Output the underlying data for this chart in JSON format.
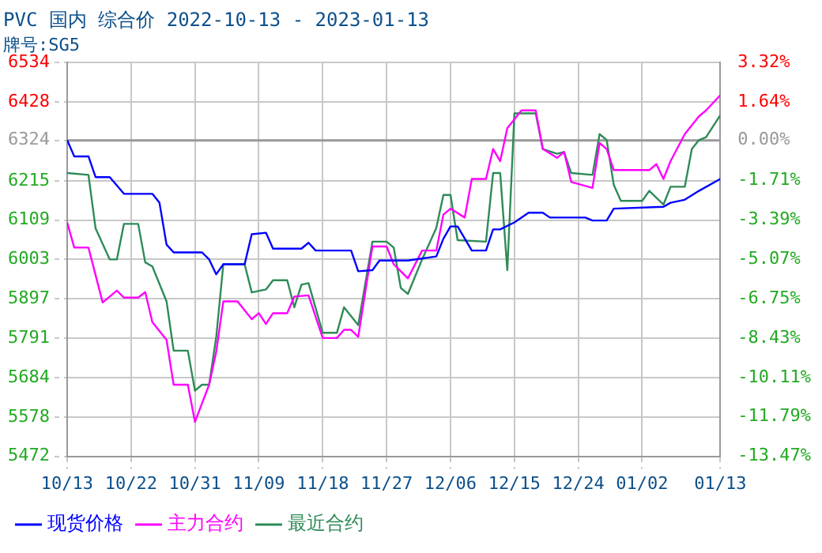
{
  "chart_data": {
    "type": "line",
    "title": "PVC 国内 综合价 2022-10-13 - 2023-01-13",
    "subtitle": "牌号:SG5",
    "xlim": [
      "2022-10-13",
      "2023-01-13"
    ],
    "xticks": [
      {
        "value": "2022-10-13",
        "label": "10/13"
      },
      {
        "value": "2022-10-22",
        "label": "10/22"
      },
      {
        "value": "2022-10-31",
        "label": "10/31"
      },
      {
        "value": "2022-11-09",
        "label": "11/09"
      },
      {
        "value": "2022-11-18",
        "label": "11/18"
      },
      {
        "value": "2022-11-27",
        "label": "11/27"
      },
      {
        "value": "2022-12-06",
        "label": "12/06"
      },
      {
        "value": "2022-12-15",
        "label": "12/15"
      },
      {
        "value": "2022-12-24",
        "label": "12/24"
      },
      {
        "value": "2023-01-02",
        "label": "01/02"
      },
      {
        "value": "2023-01-13",
        "label": "01/13"
      }
    ],
    "ylim": [
      5472,
      6534
    ],
    "yticks": [
      5472,
      5578,
      5684,
      5791,
      5897,
      6003,
      6109,
      6215,
      6324,
      6428,
      6534
    ],
    "y2lim": [
      -13.47,
      3.32
    ],
    "y2ticks": [
      {
        "value": -13.47,
        "label": "-13.47%"
      },
      {
        "value": -11.79,
        "label": "-11.79%"
      },
      {
        "value": -10.11,
        "label": "-10.11%"
      },
      {
        "value": -8.43,
        "label": "-8.43%"
      },
      {
        "value": -6.75,
        "label": "-6.75%"
      },
      {
        "value": -5.07,
        "label": "-5.07%"
      },
      {
        "value": -3.39,
        "label": "-3.39%"
      },
      {
        "value": -1.71,
        "label": "-1.71%"
      },
      {
        "value": 0,
        "label": "0.00%"
      },
      {
        "value": 1.64,
        "label": "1.64%"
      },
      {
        "value": 3.32,
        "label": "3.32%"
      }
    ],
    "ref_lines": [
      {
        "axis": "y",
        "value": 6324,
        "color": "#999999"
      }
    ],
    "grid": true,
    "legend": "bottom",
    "marker": "none",
    "line_style": "solid",
    "series": [
      {
        "name": "现货价格",
        "color": "#0000ff",
        "x": [
          "2022-10-13",
          "2022-10-14",
          "2022-10-16",
          "2022-10-17",
          "2022-10-19",
          "2022-10-21",
          "2022-10-25",
          "2022-10-26",
          "2022-10-27",
          "2022-10-28",
          "2022-11-01",
          "2022-11-02",
          "2022-11-03",
          "2022-11-04",
          "2022-11-07",
          "2022-11-08",
          "2022-11-10",
          "2022-11-11",
          "2022-11-15",
          "2022-11-16",
          "2022-11-17",
          "2022-11-22",
          "2022-11-23",
          "2022-11-25",
          "2022-11-26",
          "2022-11-30",
          "2022-12-04",
          "2022-12-05",
          "2022-12-06",
          "2022-12-07",
          "2022-12-09",
          "2022-12-11",
          "2022-12-12",
          "2022-12-13",
          "2022-12-15",
          "2022-12-17",
          "2022-12-19",
          "2022-12-20",
          "2022-12-25",
          "2022-12-26",
          "2022-12-28",
          "2022-12-29",
          "2023-01-05",
          "2023-01-06",
          "2023-01-08",
          "2023-01-10",
          "2023-01-13"
        ],
        "values": [
          6325,
          6281,
          6281,
          6225,
          6225,
          6180,
          6180,
          6156,
          6043,
          6022,
          6022,
          6003,
          5963,
          5990,
          5990,
          6071,
          6075,
          6032,
          6032,
          6048,
          6027,
          6027,
          5971,
          5974,
          6000,
          6000,
          6011,
          6059,
          6092,
          6092,
          6027,
          6027,
          6084,
          6084,
          6103,
          6129,
          6129,
          6116,
          6116,
          6108,
          6108,
          6140,
          6145,
          6156,
          6164,
          6188,
          6220
        ]
      },
      {
        "name": "主力合约",
        "color": "#ff00ff",
        "x": [
          "2022-10-13",
          "2022-10-14",
          "2022-10-16",
          "2022-10-18",
          "2022-10-20",
          "2022-10-21",
          "2022-10-23",
          "2022-10-24",
          "2022-10-25",
          "2022-10-27",
          "2022-10-28",
          "2022-10-30",
          "2022-10-31",
          "2022-11-02",
          "2022-11-03",
          "2022-11-04",
          "2022-11-06",
          "2022-11-08",
          "2022-11-09",
          "2022-11-10",
          "2022-11-11",
          "2022-11-13",
          "2022-11-14",
          "2022-11-16",
          "2022-11-18",
          "2022-11-20",
          "2022-11-21",
          "2022-11-22",
          "2022-11-23",
          "2022-11-25",
          "2022-11-27",
          "2022-11-28",
          "2022-11-30",
          "2022-12-02",
          "2022-12-04",
          "2022-12-05",
          "2022-12-06",
          "2022-12-08",
          "2022-12-09",
          "2022-12-11",
          "2022-12-12",
          "2022-12-13",
          "2022-12-14",
          "2022-12-16",
          "2022-12-18",
          "2022-12-19",
          "2022-12-21",
          "2022-12-22",
          "2022-12-23",
          "2022-12-26",
          "2022-12-27",
          "2022-12-28",
          "2022-12-29",
          "2023-01-03",
          "2023-01-04",
          "2023-01-05",
          "2023-01-06",
          "2023-01-08",
          "2023-01-10",
          "2023-01-11",
          "2023-01-13"
        ],
        "values": [
          6103,
          6035,
          6035,
          5887,
          5919,
          5900,
          5900,
          5915,
          5834,
          5786,
          5665,
          5665,
          5565,
          5665,
          5754,
          5890,
          5890,
          5842,
          5858,
          5829,
          5858,
          5858,
          5903,
          5906,
          5791,
          5791,
          5813,
          5813,
          5794,
          6038,
          6038,
          5990,
          5952,
          6027,
          6027,
          6124,
          6140,
          6116,
          6220,
          6220,
          6301,
          6268,
          6357,
          6405,
          6405,
          6301,
          6277,
          6293,
          6212,
          6196,
          6317,
          6301,
          6244,
          6244,
          6260,
          6220,
          6268,
          6341,
          6389,
          6405,
          6446
        ]
      },
      {
        "name": "最近合约",
        "color": "#2e8b57",
        "x": [
          "2022-10-13",
          "2022-10-16",
          "2022-10-17",
          "2022-10-19",
          "2022-10-20",
          "2022-10-21",
          "2022-10-23",
          "2022-10-24",
          "2022-10-25",
          "2022-10-27",
          "2022-10-28",
          "2022-10-30",
          "2022-10-31",
          "2022-11-01",
          "2022-11-02",
          "2022-11-03",
          "2022-11-04",
          "2022-11-07",
          "2022-11-08",
          "2022-11-10",
          "2022-11-11",
          "2022-11-13",
          "2022-11-14",
          "2022-11-15",
          "2022-11-16",
          "2022-11-18",
          "2022-11-20",
          "2022-11-21",
          "2022-11-23",
          "2022-11-25",
          "2022-11-27",
          "2022-11-28",
          "2022-11-29",
          "2022-11-30",
          "2022-12-02",
          "2022-12-04",
          "2022-12-05",
          "2022-12-06",
          "2022-12-07",
          "2022-12-11",
          "2022-12-12",
          "2022-12-13",
          "2022-12-14",
          "2022-12-15",
          "2022-12-18",
          "2022-12-19",
          "2022-12-21",
          "2022-12-22",
          "2022-12-23",
          "2022-12-26",
          "2022-12-27",
          "2022-12-28",
          "2022-12-29",
          "2022-12-30",
          "2023-01-02",
          "2023-01-03",
          "2023-01-05",
          "2023-01-06",
          "2023-01-08",
          "2023-01-09",
          "2023-01-10",
          "2023-01-11",
          "2023-01-13"
        ],
        "values": [
          6236,
          6231,
          6087,
          6003,
          6003,
          6099,
          6099,
          5995,
          5984,
          5890,
          5757,
          5757,
          5649,
          5665,
          5665,
          5794,
          5990,
          5990,
          5914,
          5922,
          5947,
          5947,
          5874,
          5935,
          5939,
          5805,
          5805,
          5874,
          5826,
          6051,
          6051,
          6035,
          5926,
          5910,
          6003,
          6088,
          6177,
          6177,
          6055,
          6051,
          6236,
          6236,
          5974,
          6397,
          6397,
          6301,
          6288,
          6293,
          6236,
          6231,
          6341,
          6325,
          6204,
          6161,
          6161,
          6188,
          6151,
          6199,
          6199,
          6301,
          6325,
          6333,
          6392
        ]
      }
    ]
  }
}
